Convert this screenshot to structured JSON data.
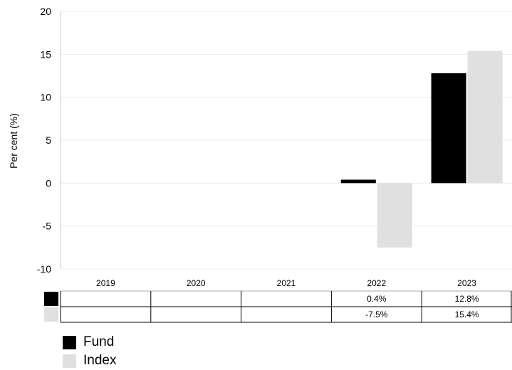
{
  "chart_data": {
    "type": "bar",
    "categories": [
      "2019",
      "2020",
      "2021",
      "2022",
      "2023"
    ],
    "series": [
      {
        "name": "Fund",
        "color": "#000000",
        "values": [
          null,
          null,
          null,
          0.4,
          12.8
        ],
        "labels": [
          "",
          "",
          "",
          "0.4%",
          "12.8%"
        ]
      },
      {
        "name": "Index",
        "color": "#e0e0e0",
        "values": [
          null,
          null,
          null,
          -7.5,
          15.4
        ],
        "labels": [
          "",
          "",
          "",
          "-7.5%",
          "15.4%"
        ]
      }
    ],
    "ylabel": "Per cent (%)",
    "ylim": [
      -10,
      20
    ],
    "yticks": [
      "-10",
      "-5",
      "0",
      "5",
      "10",
      "15",
      "20"
    ],
    "grid": true,
    "legend_position": "bottom-left"
  }
}
